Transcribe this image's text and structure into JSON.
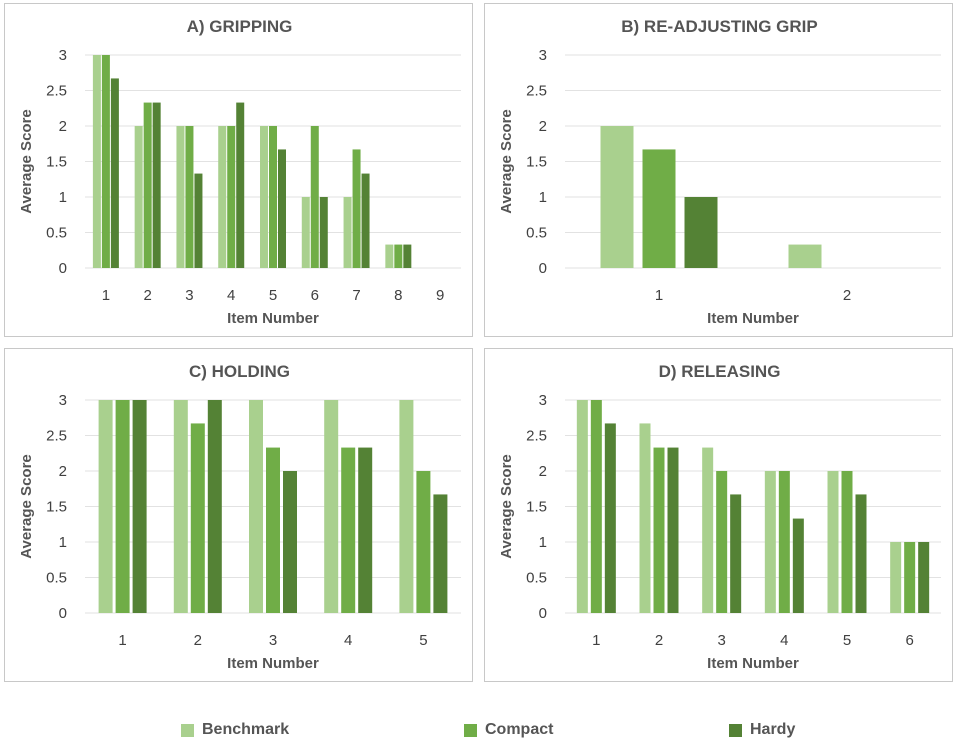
{
  "colors": {
    "benchmark": "#a9d08e",
    "compact": "#70ad47",
    "hardy": "#548235"
  },
  "legend": {
    "benchmark": "Benchmark",
    "compact": "Compact",
    "hardy": "Hardy"
  },
  "chart_data": [
    {
      "id": "a",
      "type": "bar",
      "title": "A) GRIPPING",
      "xlabel": "Item Number",
      "ylabel": "Average Score",
      "ylim": [
        0,
        3
      ],
      "yticks": [
        "0",
        "0.5",
        "1",
        "1.5",
        "2",
        "2.5",
        "3"
      ],
      "categories": [
        "1",
        "2",
        "3",
        "4",
        "5",
        "6",
        "7",
        "8",
        "9"
      ],
      "series": [
        {
          "name": "Benchmark",
          "values": [
            3,
            2,
            2,
            2,
            2,
            1,
            1,
            0.33,
            0
          ]
        },
        {
          "name": "Compact",
          "values": [
            3,
            2.33,
            2,
            2,
            2,
            2,
            1.67,
            0.33,
            0
          ]
        },
        {
          "name": "Hardy",
          "values": [
            2.67,
            2.33,
            1.33,
            2.33,
            1.67,
            1,
            1.33,
            0.33,
            0
          ]
        }
      ]
    },
    {
      "id": "b",
      "type": "bar",
      "title": "B) RE-ADJUSTING GRIP",
      "xlabel": "Item Number",
      "ylabel": "Average Score",
      "ylim": [
        0,
        3
      ],
      "yticks": [
        "0",
        "0.5",
        "1",
        "1.5",
        "2",
        "2.5",
        "3"
      ],
      "categories": [
        "1",
        "2"
      ],
      "series": [
        {
          "name": "Benchmark",
          "values": [
            2,
            0.33
          ]
        },
        {
          "name": "Compact",
          "values": [
            1.67,
            0
          ]
        },
        {
          "name": "Hardy",
          "values": [
            1,
            0
          ]
        }
      ]
    },
    {
      "id": "c",
      "type": "bar",
      "title": "C) HOLDING",
      "xlabel": "Item Number",
      "ylabel": "Average Score",
      "ylim": [
        0,
        3
      ],
      "yticks": [
        "0",
        "0.5",
        "1",
        "1.5",
        "2",
        "2.5",
        "3"
      ],
      "categories": [
        "1",
        "2",
        "3",
        "4",
        "5"
      ],
      "series": [
        {
          "name": "Benchmark",
          "values": [
            3,
            3,
            3,
            3,
            3
          ]
        },
        {
          "name": "Compact",
          "values": [
            3,
            2.67,
            2.33,
            2.33,
            2
          ]
        },
        {
          "name": "Hardy",
          "values": [
            3,
            3,
            2,
            2.33,
            1.67
          ]
        }
      ]
    },
    {
      "id": "d",
      "type": "bar",
      "title": "D) RELEASING",
      "xlabel": "Item Number",
      "ylabel": "Average Score",
      "ylim": [
        0,
        3
      ],
      "yticks": [
        "0",
        "0.5",
        "1",
        "1.5",
        "2",
        "2.5",
        "3"
      ],
      "categories": [
        "1",
        "2",
        "3",
        "4",
        "5",
        "6"
      ],
      "series": [
        {
          "name": "Benchmark",
          "values": [
            3,
            2.67,
            2.33,
            2,
            2,
            1
          ]
        },
        {
          "name": "Compact",
          "values": [
            3,
            2.33,
            2,
            2,
            2,
            1
          ]
        },
        {
          "name": "Hardy",
          "values": [
            2.67,
            2.33,
            1.67,
            1.33,
            1.67,
            1
          ]
        }
      ]
    }
  ]
}
